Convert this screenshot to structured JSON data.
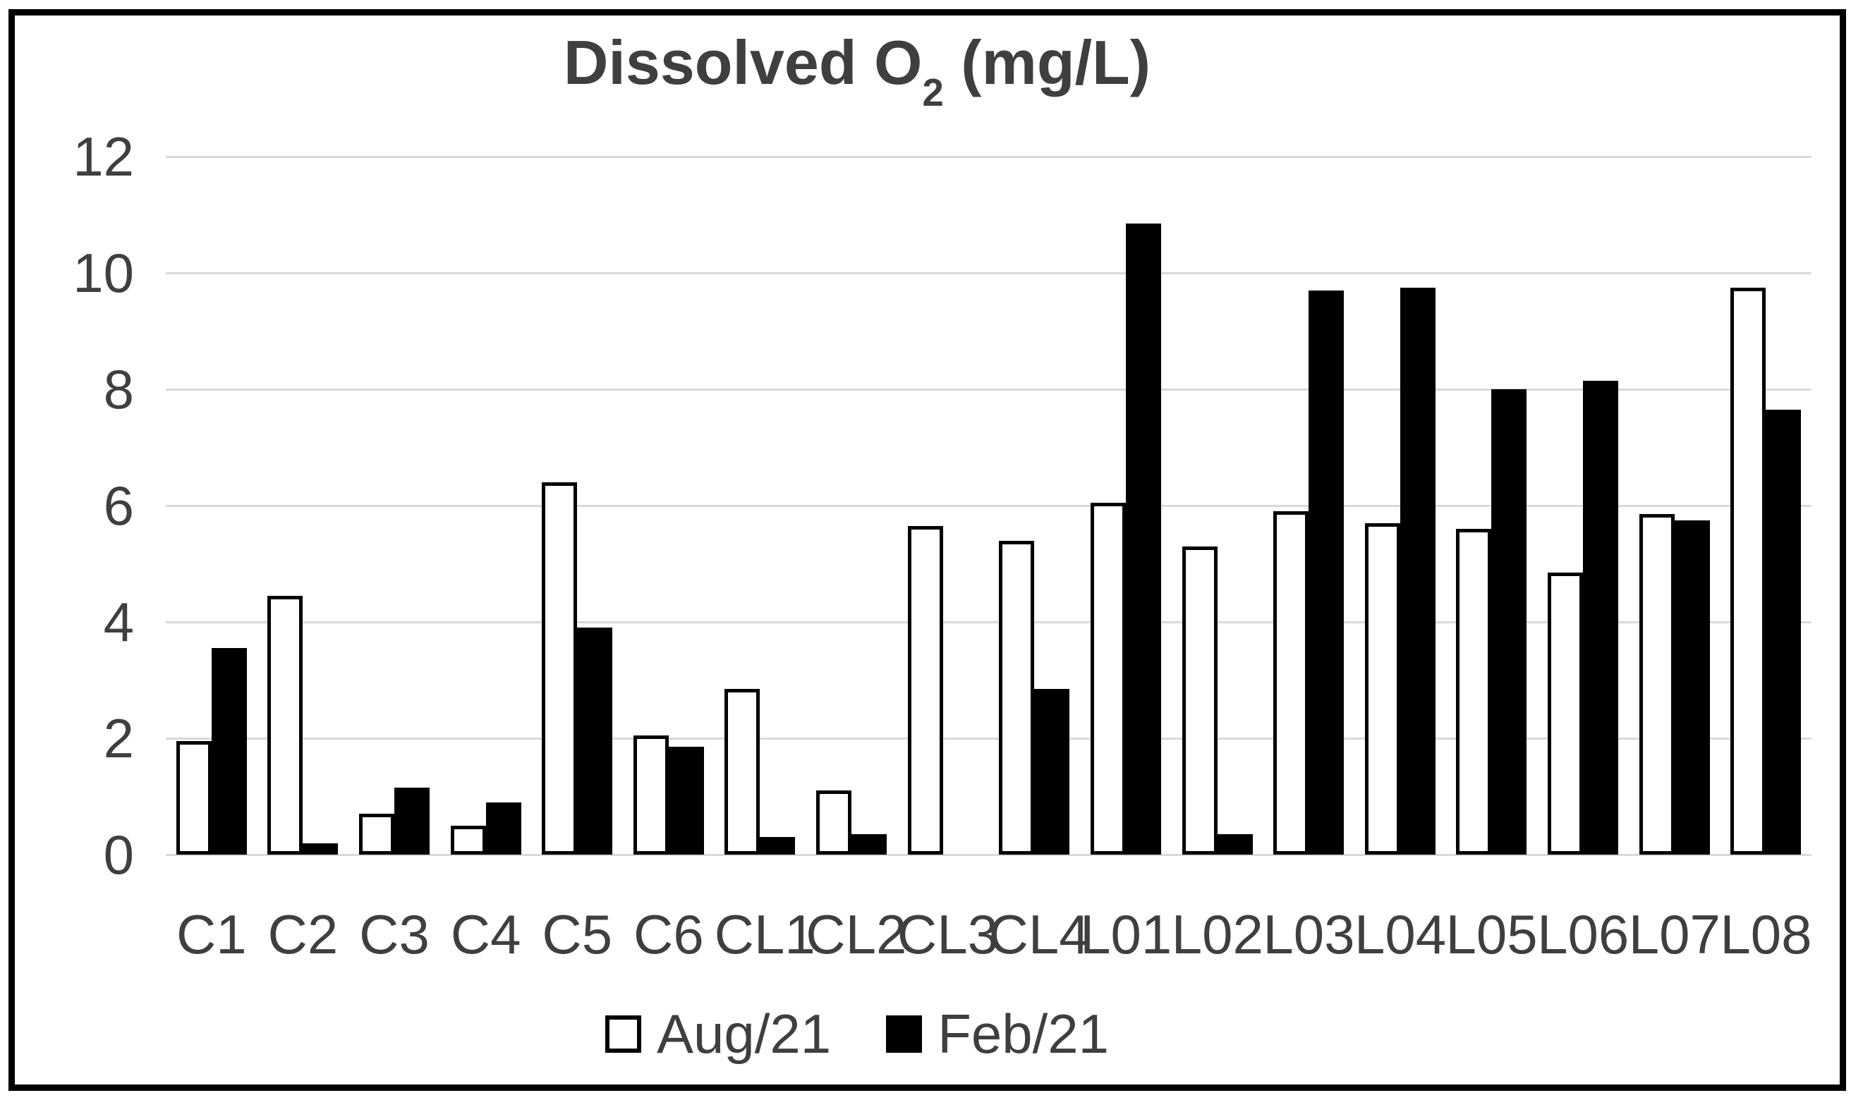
{
  "title": {
    "prefix": "Dissolved O",
    "subscript": "2",
    "suffix": " (mg/L)"
  },
  "colors": {
    "text": "#3f3f3f",
    "gridline": "#d9d9d9",
    "aug_fill": "#ffffff",
    "aug_border": "#000000",
    "feb_fill": "#000000",
    "frame_border": "#000000",
    "background": "#ffffff"
  },
  "legend": {
    "items": [
      {
        "label": "Aug/21",
        "fill": "#ffffff",
        "border": "#000000"
      },
      {
        "label": "Feb/21",
        "fill": "#000000",
        "border": "#000000"
      }
    ]
  },
  "chart_data": {
    "type": "bar",
    "title": "Dissolved O2 (mg/L)",
    "xlabel": "",
    "ylabel": "",
    "ylim": [
      0,
      12
    ],
    "yticks": [
      0,
      2,
      4,
      6,
      8,
      10,
      12
    ],
    "grid": true,
    "legend_position": "bottom",
    "categories": [
      "C1",
      "C2",
      "C3",
      "C4",
      "C5",
      "C6",
      "CL1",
      "CL2",
      "CL3",
      "CL4",
      "L01",
      "L02",
      "L03",
      "L04",
      "L05",
      "L06",
      "L07",
      "L08"
    ],
    "series": [
      {
        "name": "Aug/21",
        "style": "white-outlined",
        "values": [
          1.95,
          4.45,
          0.7,
          0.5,
          6.4,
          2.05,
          2.85,
          1.1,
          5.65,
          5.4,
          6.05,
          5.3,
          5.9,
          5.7,
          5.6,
          4.85,
          5.85,
          9.75
        ]
      },
      {
        "name": "Feb/21",
        "style": "black-solid",
        "values": [
          3.55,
          0.2,
          1.15,
          0.9,
          3.9,
          1.85,
          0.3,
          0.35,
          0,
          2.85,
          10.85,
          0.35,
          9.7,
          9.75,
          8.0,
          8.15,
          5.75,
          7.65
        ]
      }
    ]
  }
}
